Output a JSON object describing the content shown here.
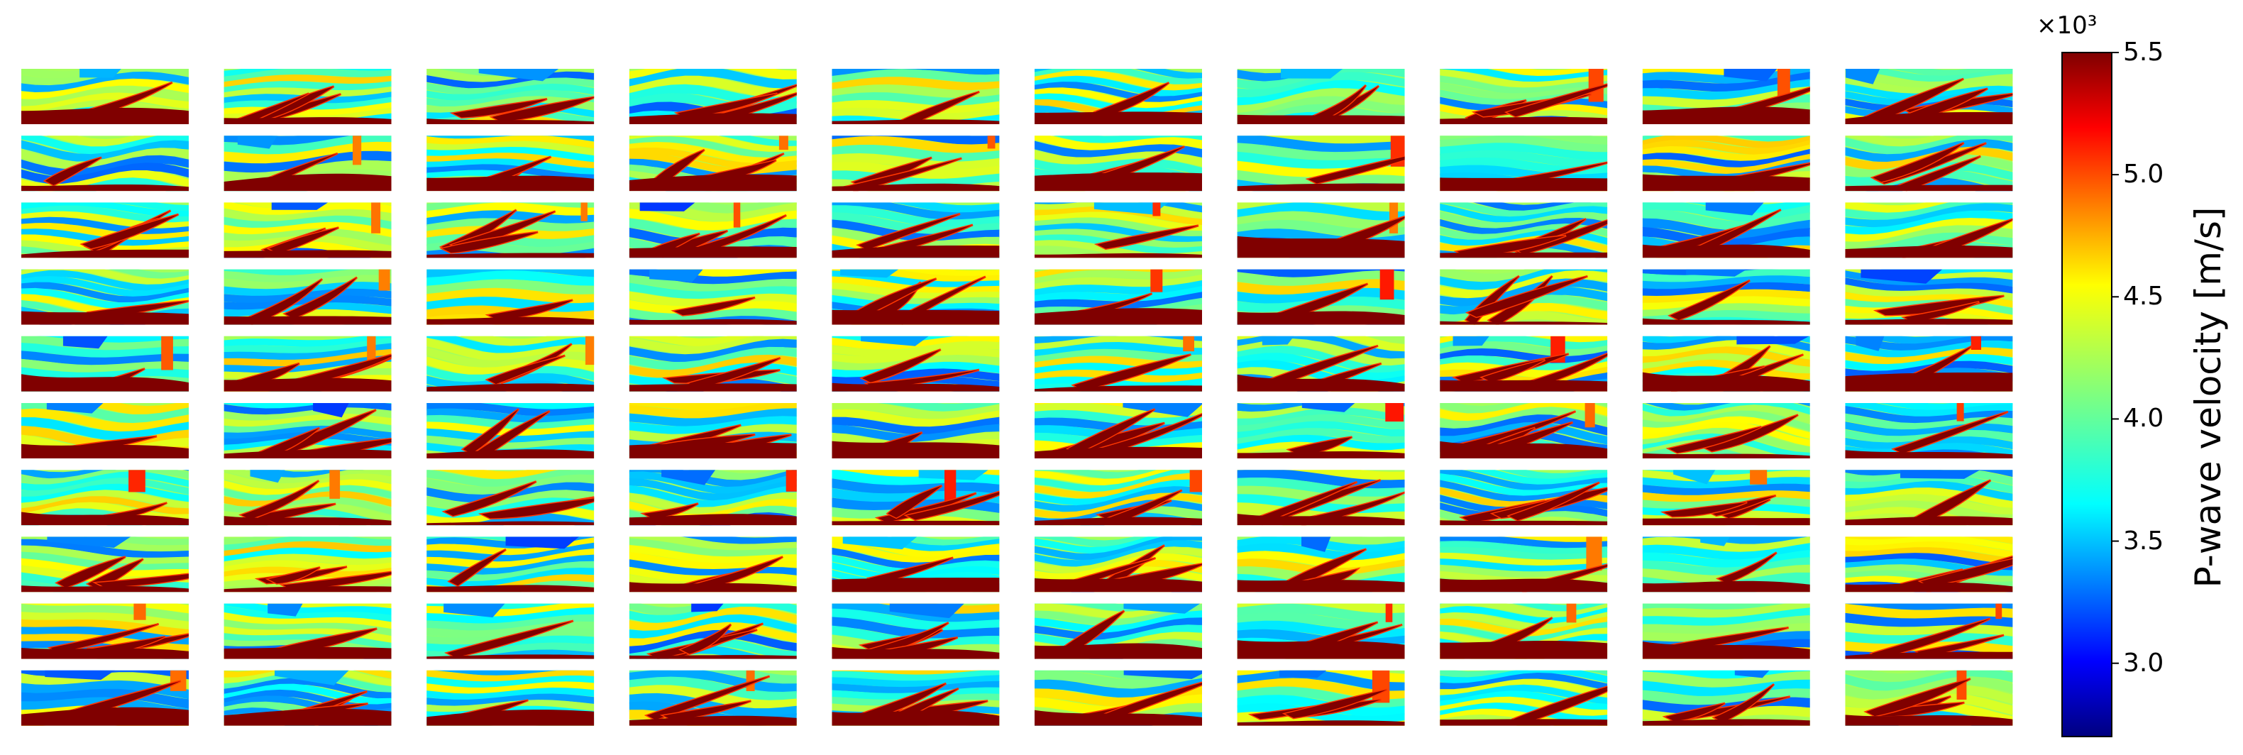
{
  "chart_data": {
    "type": "heatmap",
    "title": "",
    "description_grid": {
      "rows": 10,
      "cols": 10
    },
    "colormap": "jet",
    "colorbar": {
      "label": "P-wave velocity [m/s]",
      "scale_label": "×10³",
      "vmin": 2.7,
      "vmax": 5.5,
      "ticks": [
        3.0,
        3.5,
        4.0,
        4.5,
        5.0,
        5.5
      ],
      "tick_labels": [
        "3.0",
        "3.5",
        "4.0",
        "4.5",
        "5.0",
        "5.5"
      ]
    },
    "layer_velocity_range": [
      3.3,
      4.6
    ],
    "salt_velocity": 5.5
  }
}
